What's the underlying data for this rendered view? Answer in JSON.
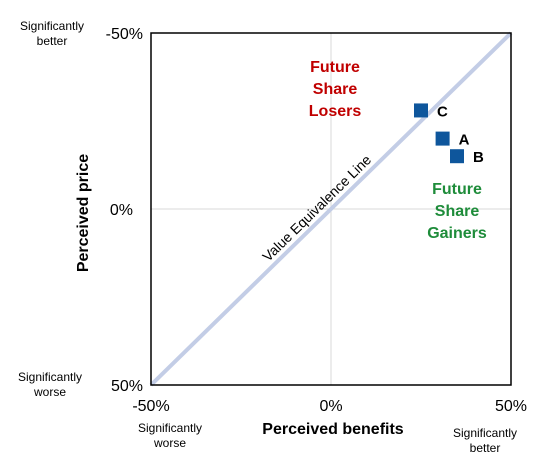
{
  "chart_data": {
    "type": "scatter",
    "xlabel": "Perceived benefits",
    "ylabel": "Perceived price",
    "xlim": [
      -50,
      50
    ],
    "ylim": [
      50,
      -50
    ],
    "x_ticks": [
      "-50%",
      "0%",
      "50%"
    ],
    "y_ticks": [
      "-50%",
      "0%",
      "50%"
    ],
    "x_qualifiers": {
      "low": "Significantly\nworse",
      "high": "Significantly\nbetter"
    },
    "y_qualifiers": {
      "top": "Significantly\nbetter",
      "bottom": "Significantly\nworse"
    },
    "grid": true,
    "points": [
      {
        "label": "C",
        "x": 25,
        "y": -28
      },
      {
        "label": "A",
        "x": 31,
        "y": -20
      },
      {
        "label": "B",
        "x": 35,
        "y": -15
      }
    ],
    "reference_line": {
      "label": "Value Equivalence Line",
      "from": [
        -50,
        50
      ],
      "to": [
        50,
        -50
      ]
    },
    "annotations": [
      {
        "text": "Future\nShare\nLosers",
        "color": "#c00000"
      },
      {
        "text": "Future\nShare\nGainers",
        "color": "#1e8c3a"
      }
    ],
    "colors": {
      "marker": "#0e569c",
      "reference_line": "#c3cde6",
      "grid": "#d9d9d9",
      "axis": "#000000"
    }
  }
}
